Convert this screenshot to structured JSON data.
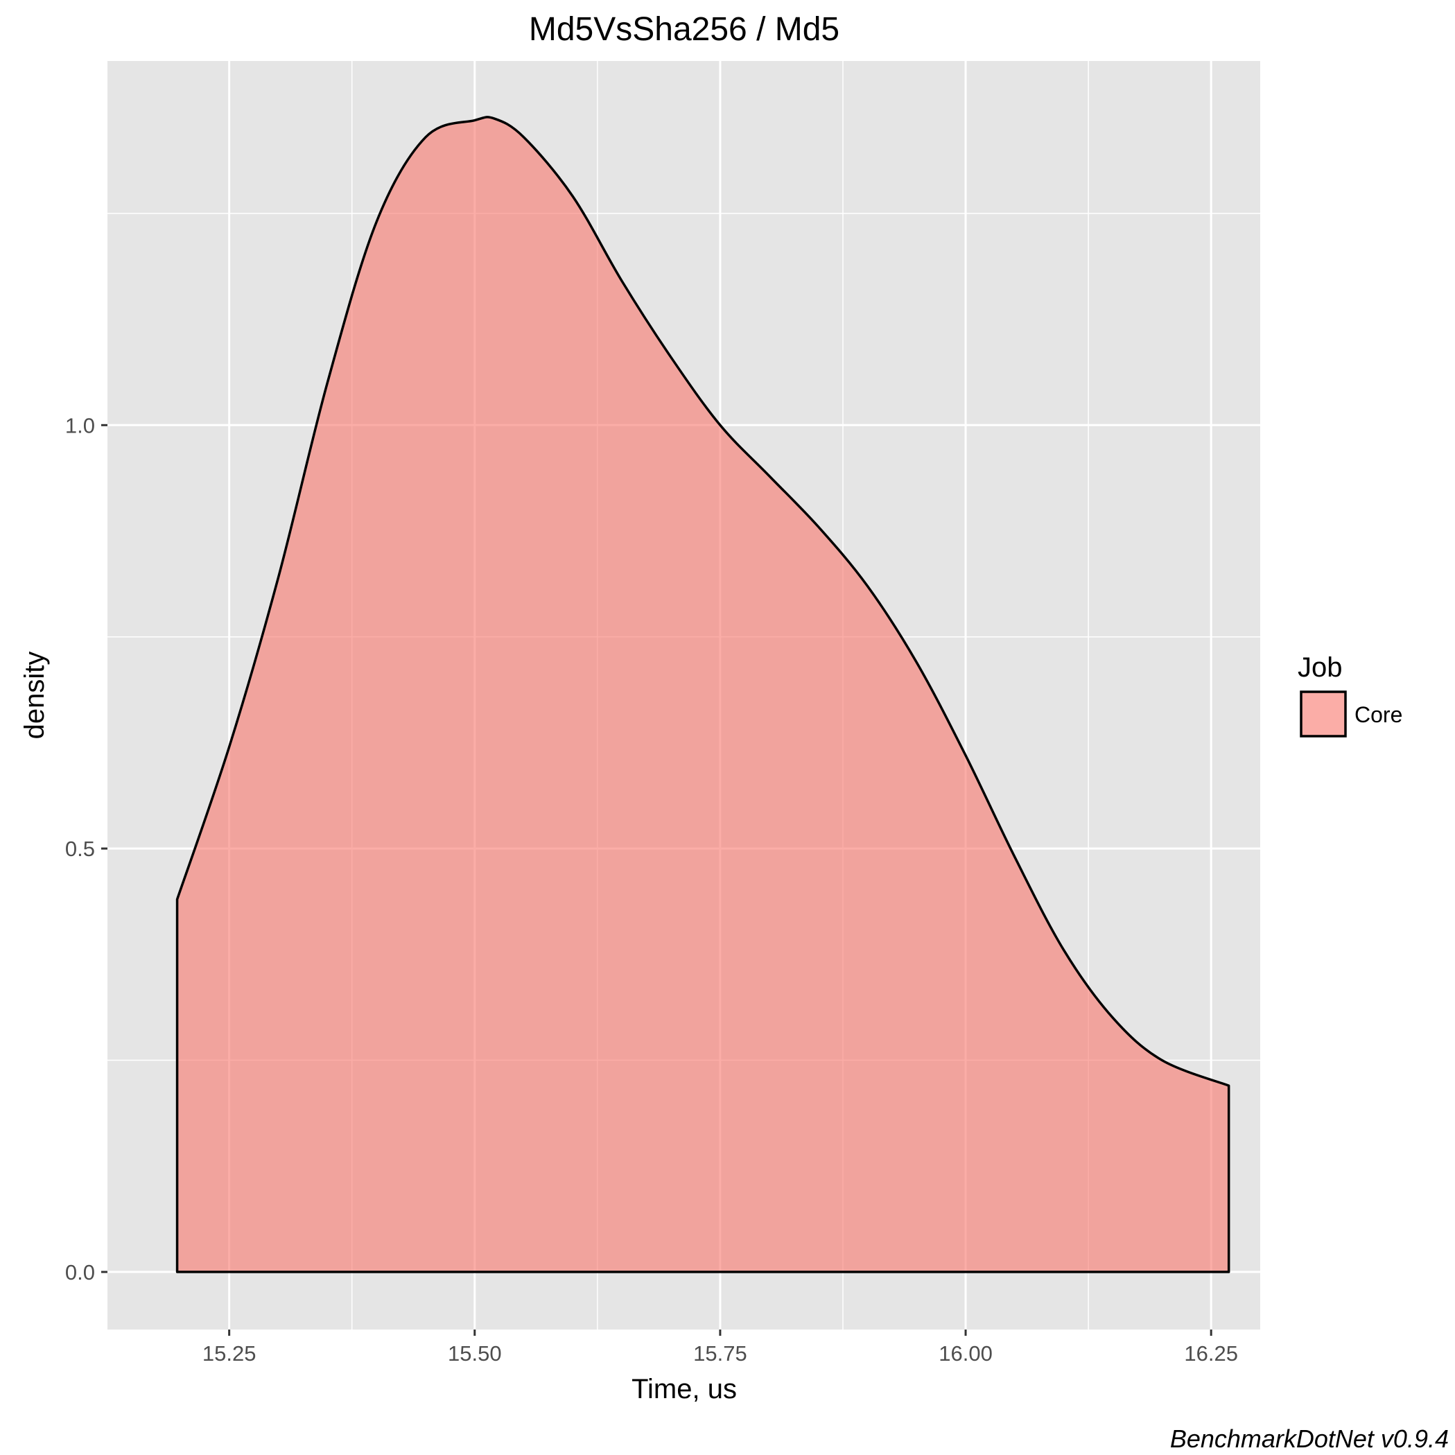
{
  "chart_data": {
    "type": "area",
    "title": "Md5VsSha256 / Md5",
    "xlabel": "Time, us",
    "ylabel": "density",
    "xlim": [
      15.126,
      16.3
    ],
    "ylim": [
      -0.068,
      1.43
    ],
    "x_ticks": [
      15.25,
      15.5,
      15.75,
      16.0,
      16.25
    ],
    "x_tick_labels": [
      "15.25",
      "15.50",
      "15.75",
      "16.00",
      "16.25"
    ],
    "x_minor_ticks": [
      15.375,
      15.625,
      15.875,
      16.125
    ],
    "y_ticks": [
      0.0,
      0.5,
      1.0
    ],
    "y_tick_labels": [
      "0.0",
      "0.5",
      "1.0"
    ],
    "y_minor_ticks": [
      0.25,
      0.75,
      1.25
    ],
    "grid": true,
    "legend": {
      "title": "Job",
      "position": "right",
      "entries": [
        "Core"
      ]
    },
    "caption": "BenchmarkDotNet v0.9.4",
    "colors": {
      "fill": "#F8766D",
      "fill_opacity": 0.6,
      "outline": "#000000",
      "panel": "#E5E5E5",
      "grid": "#FFFFFF"
    },
    "series": [
      {
        "name": "Core",
        "x": [
          15.197,
          15.25,
          15.3,
          15.35,
          15.4,
          15.45,
          15.5,
          15.52,
          15.55,
          15.6,
          15.65,
          15.7,
          15.75,
          15.8,
          15.85,
          15.9,
          15.95,
          16.0,
          16.05,
          16.1,
          16.15,
          16.2,
          16.268
        ],
        "y": [
          0.44,
          0.62,
          0.82,
          1.05,
          1.24,
          1.34,
          1.36,
          1.362,
          1.34,
          1.27,
          1.17,
          1.08,
          1.0,
          0.94,
          0.88,
          0.81,
          0.72,
          0.61,
          0.49,
          0.38,
          0.3,
          0.25,
          0.22
        ]
      }
    ]
  }
}
